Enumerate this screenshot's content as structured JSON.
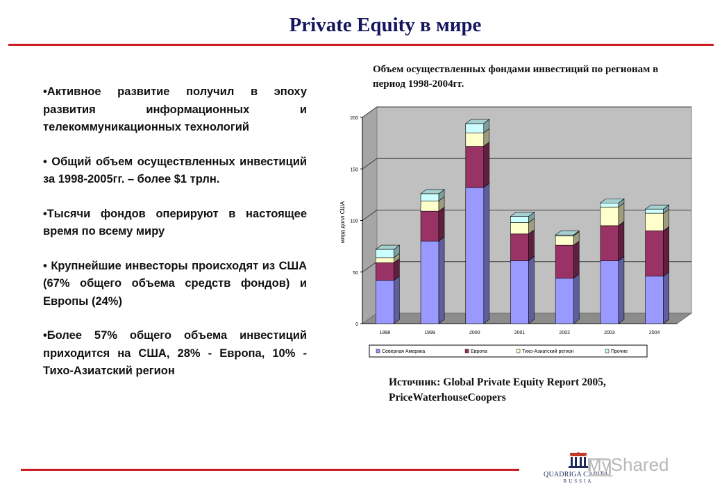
{
  "page": {
    "title": "Private Equity в мире",
    "bullets": [
      "•Активное развитие получил в эпоху развития информационных и телекоммуникационных технологий",
      "• Общий объем осуществленных инвестиций за 1998-2005гг. – более $1 трлн.",
      "•Тысячи фондов оперируют в настоящее время по всему миру",
      "• Крупнейшие инвесторы происходят из США (67% общего объема средств фондов) и Европы (24%)",
      "•Более 57% общего объема инвестиций приходится на США, 28% - Европа, 10% - Тихо-Азиатский регион"
    ],
    "chart_caption": "Объем осуществленных фондами инвестиций по регионам в период 1998-2004гг.",
    "source": "Источник: Global Private Equity Report 2005, PriceWaterhouseCoopers",
    "logo": {
      "name": "QUADRIGA CAPITAL",
      "sub": "RUSSIA"
    },
    "watermark": "MyShared"
  },
  "chart_data": {
    "type": "bar",
    "stacked": true,
    "three_d": true,
    "categories": [
      "1998",
      "1999",
      "2000",
      "2001",
      "2002",
      "2003",
      "2004"
    ],
    "ylabel": "млрд долл США",
    "ylim": [
      0,
      200
    ],
    "yticks": [
      0,
      50,
      100,
      150,
      200
    ],
    "grid": true,
    "legend_position": "bottom",
    "series": [
      {
        "name": "Северная Америка",
        "color": "#9999ff",
        "values": [
          42,
          80,
          132,
          61,
          44,
          61,
          46
        ]
      },
      {
        "name": "Европа",
        "color": "#993366",
        "values": [
          17,
          29,
          40,
          26,
          32,
          34,
          44
        ]
      },
      {
        "name": "Тихо-Азиатский регион",
        "color": "#ffffcc",
        "values": [
          5,
          10,
          13,
          11,
          9,
          18,
          17
        ]
      },
      {
        "name": "Прочие",
        "color": "#ccffff",
        "values": [
          8,
          7,
          9,
          6,
          1,
          4,
          4
        ]
      }
    ]
  }
}
